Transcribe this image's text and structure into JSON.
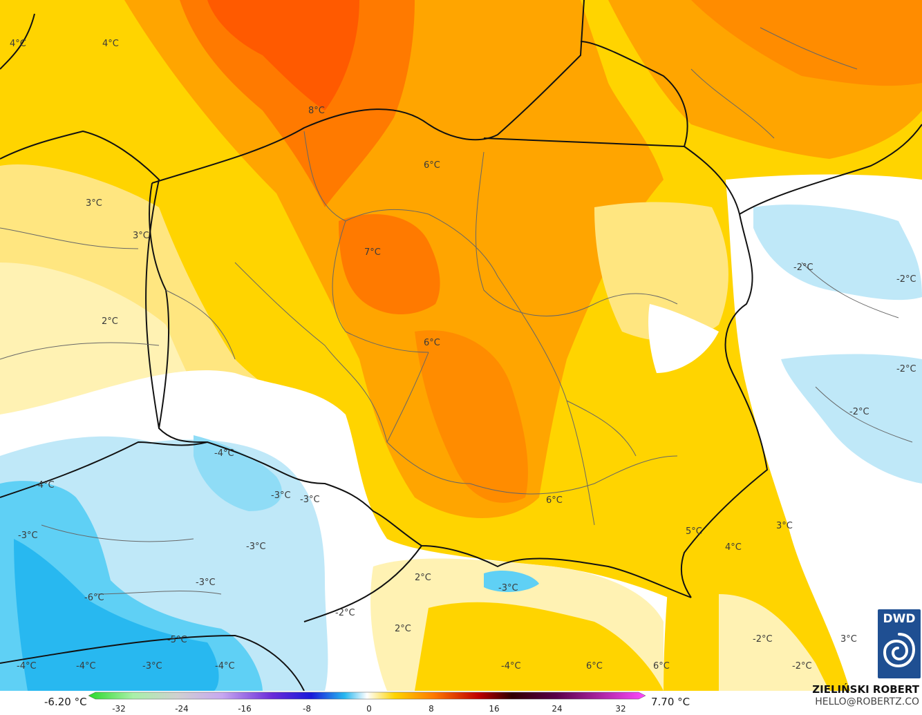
{
  "legend": {
    "min_label": "-6.20 °C",
    "max_label": "7.70 °C",
    "ticks": [
      "-32",
      "-24",
      "-16",
      "-8",
      "0",
      "8",
      "16",
      "24",
      "32"
    ]
  },
  "credit": {
    "author": "ZIELIŃSKI ROBERT",
    "email": "HELLO@ROBERTZ.CO"
  },
  "logo": {
    "text": "DWD"
  },
  "labels": {
    "l1": "4°C",
    "l2": "4°C",
    "l3": "8°C",
    "l4": "6°C",
    "l5": "3°C",
    "l6": "3°C",
    "l7": "7°C",
    "l8": "2°C",
    "l9": "6°C",
    "l10": "-2°C",
    "l11": "-2°C",
    "l12": "-2°C",
    "l13": "-2°C",
    "l14": "-4°C",
    "l15": "-4°C",
    "l16": "-3°C",
    "l17": "-3°C",
    "l18": "-3°C",
    "l19": "-3°C",
    "l20": "-3°C",
    "l21": "6°C",
    "l22": "5°C",
    "l23": "4°C",
    "l24": "3°C",
    "l25": "2°C",
    "l26": "-3°C",
    "l27": "-2°C",
    "l28": "2°C",
    "l29": "-6°C",
    "l30": "-5°C",
    "l31": "-4°C",
    "l32": "-4°C",
    "l33": "-3°C",
    "l34": "-4°C",
    "l35": "-4°C",
    "l36": "6°C",
    "l37": "6°C",
    "l38": "-2°C",
    "l39": "-2°C",
    "l40": "3°C"
  },
  "colors": {
    "bg_yellow": "#ffd400",
    "light_yellow": "#ffe680",
    "pale": "#fff2b3",
    "orange": "#ffa500",
    "dark_orange": "#ff7a00",
    "red_orange": "#ff5a00",
    "light_blue": "#bfe8f8",
    "blue": "#5fd0f5",
    "deep_blue": "#28b8f0",
    "border": "#111111",
    "region": "#666666"
  }
}
